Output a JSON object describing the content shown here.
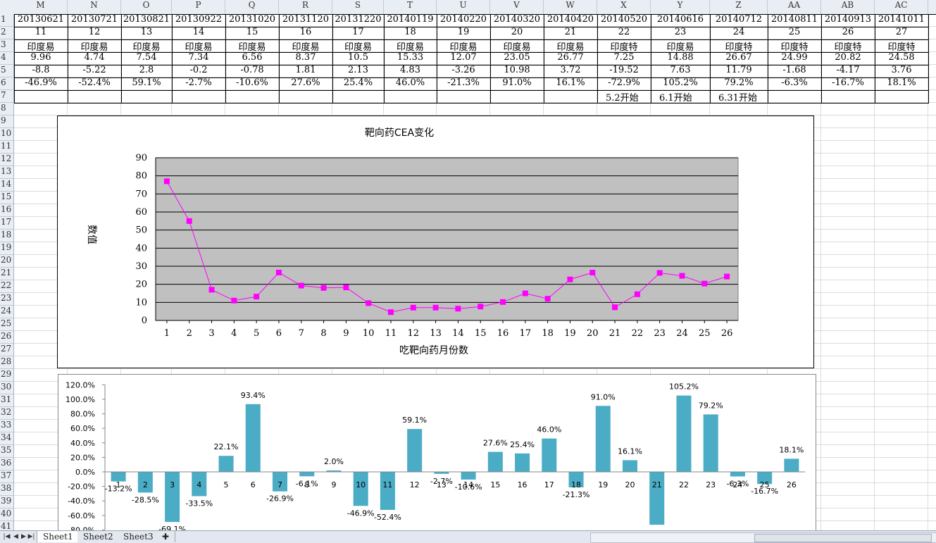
{
  "columns": [
    "M",
    "N",
    "O",
    "P",
    "Q",
    "R",
    "S",
    "T",
    "U",
    "V",
    "W",
    "X",
    "Y",
    "Z",
    "AA",
    "AB",
    "AC"
  ],
  "row_numbers": [
    "1",
    "2",
    "3",
    "4",
    "5",
    "6",
    "7",
    "8",
    "9",
    "10",
    "11",
    "12",
    "13",
    "14",
    "15",
    "16",
    "17",
    "18",
    "19",
    "20",
    "21",
    "22",
    "23",
    "24",
    "25",
    "26",
    "27",
    "28",
    "29",
    "30",
    "31",
    "32",
    "33",
    "34",
    "35",
    "36",
    "37",
    "38",
    "39",
    "40",
    "41"
  ],
  "rows": [
    [
      "20130621",
      "20130721",
      "20130821",
      "20130922",
      "20131020",
      "20131120",
      "20131220",
      "20140119",
      "20140220",
      "20140320",
      "20140420",
      "20140520",
      "20140616",
      "20140712",
      "20140811",
      "20140913",
      "20141011"
    ],
    [
      "11",
      "12",
      "13",
      "14",
      "15",
      "16",
      "17",
      "18",
      "19",
      "20",
      "21",
      "22",
      "23",
      "24",
      "25",
      "26",
      "27"
    ],
    [
      "印度易",
      "印度易",
      "印度易",
      "印度易",
      "印度易",
      "印度易",
      "印度易",
      "印度易",
      "印度易",
      "印度易",
      "印度易",
      "印度特",
      "印度易",
      "印度特",
      "印度特",
      "印度特",
      "印度特"
    ],
    [
      "9.96",
      "4.74",
      "7.54",
      "7.34",
      "6.56",
      "8.37",
      "10.5",
      "15.33",
      "12.07",
      "23.05",
      "26.77",
      "7.25",
      "14.88",
      "26.67",
      "24.99",
      "20.82",
      "24.58"
    ],
    [
      "-8.8",
      "-5.22",
      "2.8",
      "-0.2",
      "-0.78",
      "1.81",
      "2.13",
      "4.83",
      "-3.26",
      "10.98",
      "3.72",
      "-19.52",
      "7.63",
      "11.79",
      "-1.68",
      "-4.17",
      "3.76"
    ],
    [
      "-46.9%",
      "-52.4%",
      "59.1%",
      "-2.7%",
      "-10.6%",
      "27.6%",
      "25.4%",
      "46.0%",
      "-21.3%",
      "91.0%",
      "16.1%",
      "-72.9%",
      "105.2%",
      "79.2%",
      "-6.3%",
      "-16.7%",
      "18.1%"
    ],
    [
      "",
      "",
      "",
      "",
      "",
      "",
      "",
      "",
      "",
      "",
      "",
      "5.2开始",
      "6.1开始",
      "6.31开始",
      "",
      "",
      ""
    ]
  ],
  "chart_data": [
    {
      "type": "line",
      "title": "靶向药CEA变化",
      "xlabel": "吃靶向药月份数",
      "ylabel": "数值",
      "ylim": [
        0,
        90
      ],
      "yticks": [
        0,
        10,
        20,
        30,
        40,
        50,
        60,
        70,
        80,
        90
      ],
      "x": [
        1,
        2,
        3,
        4,
        5,
        6,
        7,
        8,
        9,
        10,
        11,
        12,
        13,
        14,
        15,
        16,
        17,
        18,
        19,
        20,
        21,
        22,
        23,
        24,
        25,
        26
      ],
      "values": [
        77,
        55,
        17,
        11,
        13.2,
        26.5,
        19.3,
        18,
        18.3,
        9.6,
        4.6,
        7.1,
        7.1,
        6.5,
        7.7,
        10.2,
        15,
        12,
        22.7,
        26.5,
        7.3,
        14.5,
        26.3,
        24.7,
        20.4,
        24.3
      ],
      "plot_bg": "#c0c0c0",
      "line_color": "#ff00ff",
      "grid": true,
      "legend": "none"
    },
    {
      "type": "bar",
      "categories": [
        "1",
        "2",
        "3",
        "4",
        "5",
        "6",
        "7",
        "8",
        "9",
        "10",
        "11",
        "12",
        "13",
        "14",
        "15",
        "16",
        "17",
        "18",
        "19",
        "20",
        "21",
        "22",
        "23",
        "24",
        "25",
        "26"
      ],
      "values": [
        -13.2,
        -28.5,
        -69.1,
        -33.5,
        22.1,
        93.4,
        -26.9,
        -6.1,
        2.0,
        -46.9,
        -52.4,
        59.1,
        -2.7,
        -10.6,
        27.6,
        25.4,
        46.0,
        -21.3,
        91.0,
        16.1,
        -72.9,
        105.2,
        79.2,
        -6.3,
        -16.7,
        18.1
      ],
      "data_labels": [
        "-13.2%",
        "-28.5%",
        "-69.1%",
        "-33.5%",
        "22.1%",
        "93.4%",
        "-26.9%",
        "-6.1%",
        "2.0%",
        "-46.9%",
        "-52.4%",
        "59.1%",
        "-2.7%",
        "-10.6%",
        "27.6%",
        "25.4%",
        "46.0%",
        "-21.3%",
        "91.0%",
        "16.1%",
        "",
        "105.2%",
        "79.2%",
        "-6.3%",
        "-16.7%",
        "18.1%"
      ],
      "ytick_labels": [
        "120.0%",
        "100.0%",
        "80.0%",
        "60.0%",
        "40.0%",
        "20.0%",
        "0.0%",
        "-20.0%",
        "-40.0%",
        "-60.0%",
        "-80.0%"
      ],
      "ylim": [
        -80,
        120
      ],
      "bar_color": "#4bacc6",
      "grid": false,
      "legend": "none"
    }
  ],
  "sheet_tabs": [
    "Sheet1",
    "Sheet2",
    "Sheet3"
  ],
  "nav_icons": [
    "first-sheet-icon",
    "prev-sheet-icon",
    "next-sheet-icon",
    "last-sheet-icon",
    "insert-sheet-icon"
  ]
}
